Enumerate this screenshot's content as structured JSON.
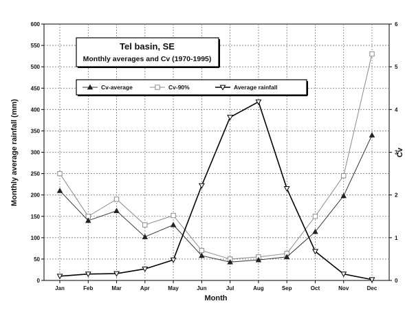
{
  "chart_data": {
    "type": "line",
    "title": "Tel basin, SE",
    "subtitle": "Monthly averages and Cv (1970-1995)",
    "xlabel": "Month",
    "ylabel": "Monthly average rainfall (mm)",
    "y2label": "Cv",
    "categories": [
      "Jan",
      "Feb",
      "Mar",
      "Apr",
      "May",
      "Jun",
      "Jul",
      "Aug",
      "Sep",
      "Oct",
      "Nov",
      "Dec"
    ],
    "ylim": [
      0,
      600
    ],
    "y2lim": [
      0,
      6
    ],
    "yticks": [
      0,
      50,
      100,
      150,
      200,
      250,
      300,
      350,
      400,
      450,
      500,
      550,
      600
    ],
    "y2ticks": [
      0,
      1,
      2,
      3,
      4,
      5,
      6
    ],
    "grid": true,
    "legend_position": "top-left",
    "series": [
      {
        "name": "Cv-average",
        "axis": "right",
        "marker": "triangle-up-filled",
        "color": "#333333",
        "values": [
          2.1,
          1.4,
          1.63,
          1.02,
          1.3,
          0.58,
          0.43,
          0.48,
          0.55,
          1.14,
          1.98,
          3.4
        ]
      },
      {
        "name": "Cv-90%",
        "axis": "right",
        "marker": "square-open",
        "color": "#888888",
        "values": [
          2.5,
          1.5,
          1.9,
          1.3,
          1.52,
          0.7,
          0.5,
          0.55,
          0.63,
          1.5,
          2.45,
          5.3
        ]
      },
      {
        "name": "Average rainfall",
        "axis": "left",
        "marker": "triangle-down-open",
        "color": "#000000",
        "values": [
          10,
          15,
          16,
          27,
          48,
          222,
          382,
          418,
          215,
          68,
          15,
          2
        ]
      }
    ]
  }
}
